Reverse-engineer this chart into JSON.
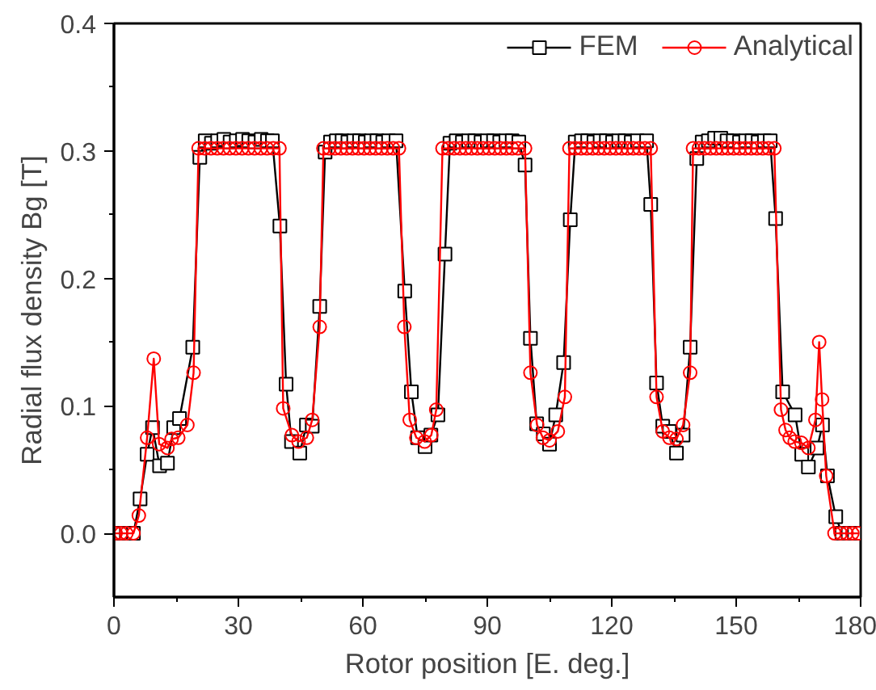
{
  "chart_data": {
    "type": "line",
    "xlabel": "Rotor position [E. deg.]",
    "ylabel": "Radial flux density Bg [T]",
    "xlim": [
      0,
      180
    ],
    "xticks": [
      0,
      30,
      60,
      90,
      120,
      150,
      180
    ],
    "ylim": [
      -0.05,
      0.4
    ],
    "yticks": [
      {
        "value": 0,
        "label": "0.0"
      },
      0.1,
      0.2,
      0.3,
      0.4
    ],
    "grid": false,
    "legend": "top right",
    "line_style": "solid",
    "series": [
      {
        "name": "FEM",
        "color": "#000000",
        "marker": "square",
        "x": [
          0.4,
          1.7,
          3.0,
          4.7,
          6.3,
          8.0,
          9.3,
          11.0,
          12.9,
          14.4,
          15.8,
          19.0,
          20.7,
          22.0,
          23.5,
          25.0,
          26.5,
          28.0,
          29.5,
          31.0,
          32.5,
          34.0,
          35.5,
          37.0,
          38.2,
          40.0,
          41.5,
          42.8,
          44.8,
          46.4,
          47.8,
          49.6,
          50.9,
          52.2,
          53.6,
          55.0,
          56.4,
          57.8,
          59.2,
          60.6,
          62.0,
          63.4,
          64.8,
          66.2,
          68.0,
          70.1,
          71.7,
          73.2,
          75.0,
          76.4,
          78.1,
          79.8,
          81.0,
          82.5,
          84.0,
          85.5,
          87.0,
          88.5,
          90.0,
          91.5,
          93.0,
          94.5,
          96.0,
          97.6,
          99.1,
          100.4,
          101.9,
          103.5,
          105.0,
          106.5,
          108.4,
          110.0,
          111.2,
          112.7,
          114.2,
          115.7,
          117.2,
          118.7,
          120.2,
          121.7,
          123.2,
          124.7,
          126.2,
          128.4,
          129.4,
          130.8,
          132.3,
          133.9,
          135.6,
          137.2,
          138.9,
          140.5,
          141.8,
          143.3,
          144.8,
          146.3,
          147.8,
          149.3,
          150.8,
          152.3,
          153.8,
          155.3,
          156.8,
          158.2,
          159.5,
          161.2,
          164.2,
          165.8,
          167.4,
          169.5,
          170.8,
          172.0,
          174.0,
          175.5,
          177.0,
          178.5
        ],
        "values": [
          0,
          0,
          0,
          0,
          0.027,
          0.062,
          0.083,
          0.053,
          0.055,
          0.083,
          0.09,
          0.146,
          0.295,
          0.308,
          0.306,
          0.308,
          0.309,
          0.307,
          0.308,
          0.309,
          0.308,
          0.307,
          0.309,
          0.308,
          0.308,
          0.241,
          0.117,
          0.072,
          0.063,
          0.085,
          0.084,
          0.178,
          0.299,
          0.307,
          0.308,
          0.308,
          0.307,
          0.308,
          0.308,
          0.307,
          0.308,
          0.308,
          0.307,
          0.308,
          0.308,
          0.19,
          0.111,
          0.075,
          0.068,
          0.077,
          0.093,
          0.219,
          0.306,
          0.308,
          0.307,
          0.308,
          0.308,
          0.307,
          0.308,
          0.308,
          0.307,
          0.308,
          0.308,
          0.307,
          0.289,
          0.153,
          0.086,
          0.078,
          0.07,
          0.093,
          0.134,
          0.246,
          0.307,
          0.308,
          0.308,
          0.307,
          0.308,
          0.308,
          0.307,
          0.308,
          0.308,
          0.307,
          0.308,
          0.308,
          0.258,
          0.118,
          0.084,
          0.08,
          0.063,
          0.077,
          0.146,
          0.294,
          0.307,
          0.308,
          0.31,
          0.31,
          0.308,
          0.308,
          0.307,
          0.308,
          0.308,
          0.307,
          0.308,
          0.308,
          0.247,
          0.111,
          0.093,
          0.062,
          0.052,
          0.067,
          0.085,
          0.045,
          0.013,
          0,
          0,
          0
        ]
      },
      {
        "name": "Analytical",
        "color": "#ff0000",
        "marker": "circle",
        "x": [
          0.4,
          1.7,
          3.0,
          4.7,
          6.0,
          8.0,
          9.6,
          10.9,
          12.9,
          13.9,
          15.5,
          17.7,
          19.2,
          20.4,
          21.9,
          23.4,
          24.9,
          26.4,
          27.9,
          29.4,
          30.9,
          32.4,
          33.9,
          35.4,
          36.9,
          38.4,
          39.9,
          40.8,
          42.9,
          44.5,
          46.5,
          47.8,
          49.6,
          50.5,
          51.9,
          53.3,
          54.7,
          56.1,
          57.5,
          58.9,
          60.3,
          61.7,
          63.1,
          64.5,
          65.9,
          67.3,
          68.7,
          70.0,
          71.3,
          72.9,
          74.9,
          76.5,
          77.7,
          79.2,
          80.6,
          82.0,
          83.4,
          84.8,
          86.2,
          87.6,
          89.0,
          90.4,
          91.8,
          93.2,
          94.6,
          96.0,
          97.4,
          99.1,
          100.4,
          102.0,
          103.4,
          105.0,
          107.0,
          108.7,
          109.8,
          111.2,
          112.6,
          114.0,
          115.4,
          116.8,
          118.2,
          119.6,
          121.0,
          122.4,
          123.8,
          125.2,
          126.6,
          128.0,
          129.4,
          130.8,
          132.3,
          133.9,
          135.6,
          137.2,
          138.9,
          139.6,
          141.0,
          142.4,
          143.8,
          145.2,
          146.6,
          148.0,
          149.4,
          150.8,
          152.2,
          153.6,
          155.0,
          156.4,
          157.8,
          159.2,
          160.8,
          161.9,
          162.9,
          164.1,
          165.7,
          167.4,
          169.1,
          170.0,
          170.7,
          171.7,
          173.7,
          175.2,
          176.6,
          178.0,
          179.4
        ],
        "values": [
          0,
          0,
          0,
          0,
          0.014,
          0.075,
          0.137,
          0.07,
          0.067,
          0.074,
          0.075,
          0.085,
          0.126,
          0.302,
          0.302,
          0.302,
          0.302,
          0.302,
          0.302,
          0.302,
          0.302,
          0.302,
          0.302,
          0.302,
          0.302,
          0.302,
          0.302,
          0.098,
          0.077,
          0.072,
          0.075,
          0.089,
          0.162,
          0.302,
          0.302,
          0.302,
          0.302,
          0.302,
          0.302,
          0.302,
          0.302,
          0.302,
          0.302,
          0.302,
          0.302,
          0.302,
          0.302,
          0.162,
          0.089,
          0.075,
          0.072,
          0.077,
          0.097,
          0.302,
          0.302,
          0.302,
          0.302,
          0.302,
          0.302,
          0.302,
          0.302,
          0.302,
          0.302,
          0.302,
          0.302,
          0.302,
          0.302,
          0.302,
          0.126,
          0.085,
          0.075,
          0.073,
          0.08,
          0.107,
          0.302,
          0.302,
          0.302,
          0.302,
          0.302,
          0.302,
          0.302,
          0.302,
          0.302,
          0.302,
          0.302,
          0.302,
          0.302,
          0.302,
          0.302,
          0.107,
          0.08,
          0.075,
          0.074,
          0.085,
          0.126,
          0.302,
          0.302,
          0.302,
          0.302,
          0.302,
          0.302,
          0.302,
          0.302,
          0.302,
          0.302,
          0.302,
          0.302,
          0.302,
          0.302,
          0.302,
          0.097,
          0.081,
          0.075,
          0.072,
          0.071,
          0.067,
          0.089,
          0.15,
          0.105,
          0.045,
          0,
          0,
          0,
          0,
          0
        ]
      }
    ]
  }
}
